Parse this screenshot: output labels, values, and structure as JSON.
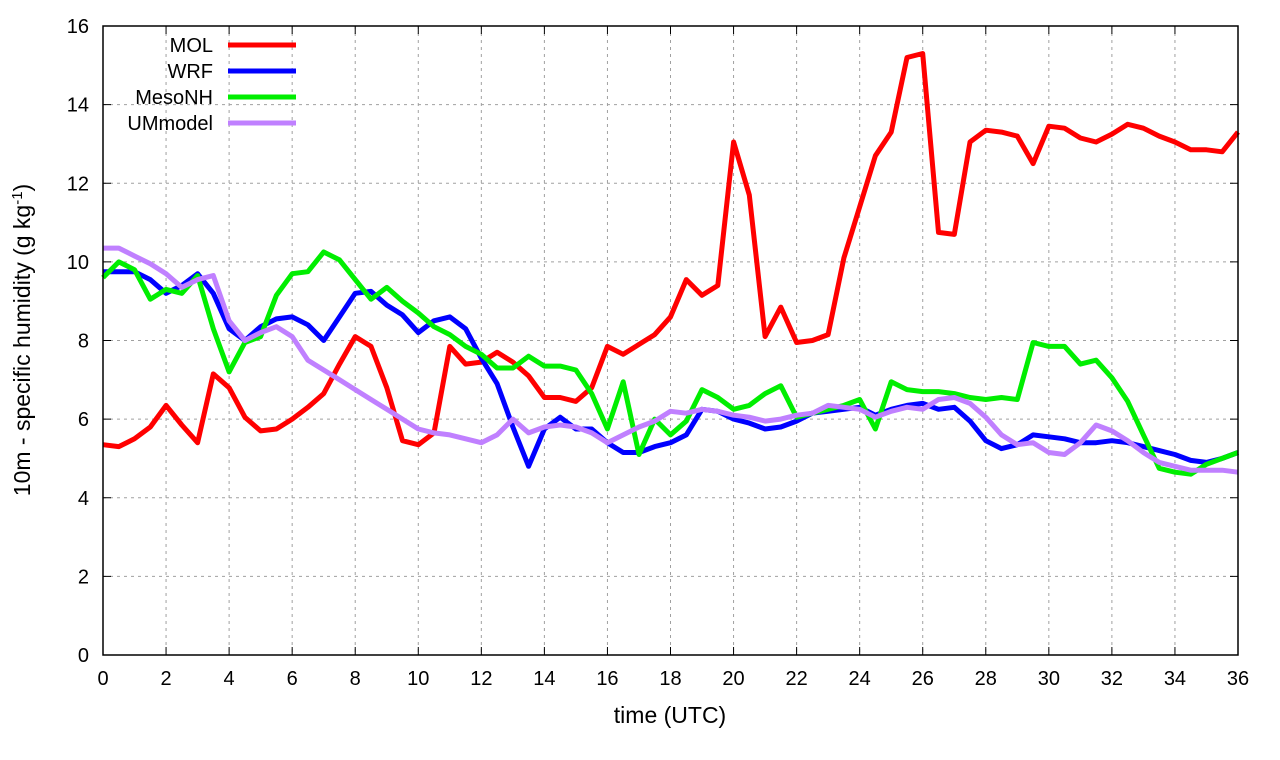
{
  "chart_data": {
    "type": "line",
    "xlabel": "time (UTC)",
    "ylabel": "10m - specific humidity (g kg",
    "ylabel_sup": "-1",
    "ylabel_close": ")",
    "xlim": [
      0,
      36
    ],
    "ylim": [
      0,
      16
    ],
    "xticks": [
      0,
      2,
      4,
      6,
      8,
      10,
      12,
      14,
      16,
      18,
      20,
      22,
      24,
      26,
      28,
      30,
      32,
      34,
      36
    ],
    "yticks": [
      0,
      2,
      4,
      6,
      8,
      10,
      12,
      14,
      16
    ],
    "grid": true,
    "legend_position": "top-left",
    "x_step": 0.5,
    "series": [
      {
        "name": "MOL",
        "color": "#ff0000",
        "values": [
          5.35,
          5.3,
          5.5,
          5.8,
          6.35,
          5.85,
          5.4,
          7.15,
          6.8,
          6.05,
          5.7,
          5.75,
          6.0,
          6.3,
          6.65,
          7.4,
          8.1,
          7.85,
          6.8,
          5.45,
          5.35,
          5.65,
          7.85,
          7.4,
          7.45,
          7.7,
          7.45,
          7.1,
          6.55,
          6.55,
          6.45,
          6.8,
          7.85,
          7.65,
          7.9,
          8.15,
          8.6,
          9.55,
          9.15,
          9.4,
          13.05,
          11.7,
          8.1,
          8.85,
          7.95,
          8.0,
          8.15,
          10.1,
          11.4,
          12.7,
          13.3,
          15.2,
          15.3,
          10.75,
          10.7,
          13.05,
          13.35,
          13.3,
          13.2,
          12.5,
          13.45,
          13.4,
          13.15,
          13.05,
          13.25,
          13.5,
          13.4,
          13.2,
          13.05,
          12.85,
          12.85,
          12.8,
          13.3
        ]
      },
      {
        "name": "WRF",
        "color": "#0000ff",
        "values": [
          9.75,
          9.75,
          9.75,
          9.55,
          9.2,
          9.4,
          9.7,
          9.2,
          8.3,
          8.0,
          8.35,
          8.55,
          8.6,
          8.4,
          8.0,
          8.6,
          9.2,
          9.25,
          8.9,
          8.65,
          8.2,
          8.5,
          8.6,
          8.3,
          7.55,
          6.9,
          5.8,
          4.8,
          5.75,
          6.05,
          5.75,
          5.75,
          5.4,
          5.15,
          5.15,
          5.3,
          5.4,
          5.6,
          6.25,
          6.2,
          6.0,
          5.9,
          5.75,
          5.8,
          5.95,
          6.15,
          6.2,
          6.25,
          6.3,
          6.1,
          6.25,
          6.35,
          6.4,
          6.25,
          6.3,
          5.95,
          5.45,
          5.25,
          5.35,
          5.6,
          5.55,
          5.5,
          5.4,
          5.4,
          5.45,
          5.4,
          5.3,
          5.2,
          5.1,
          4.95,
          4.9,
          5.0,
          5.15
        ]
      },
      {
        "name": "MesoNH",
        "color": "#00ee00",
        "values": [
          9.6,
          10.0,
          9.8,
          9.05,
          9.3,
          9.2,
          9.65,
          8.3,
          7.2,
          7.95,
          8.1,
          9.15,
          9.7,
          9.75,
          10.25,
          10.05,
          9.55,
          9.05,
          9.35,
          9.0,
          8.7,
          8.35,
          8.15,
          7.85,
          7.65,
          7.3,
          7.3,
          7.6,
          7.35,
          7.35,
          7.25,
          6.65,
          5.75,
          6.95,
          5.1,
          6.0,
          5.6,
          5.95,
          6.75,
          6.55,
          6.25,
          6.35,
          6.65,
          6.85,
          6.05,
          6.15,
          6.25,
          6.35,
          6.5,
          5.75,
          6.95,
          6.75,
          6.7,
          6.7,
          6.65,
          6.55,
          6.5,
          6.55,
          6.5,
          7.95,
          7.85,
          7.85,
          7.4,
          7.5,
          7.05,
          6.45,
          5.6,
          4.75,
          4.65,
          4.6,
          4.85,
          5.0,
          5.15
        ]
      },
      {
        "name": "UMmodel",
        "color": "#c080ff",
        "values": [
          10.35,
          10.35,
          10.15,
          9.95,
          9.7,
          9.35,
          9.55,
          9.65,
          8.5,
          8.0,
          8.2,
          8.35,
          8.1,
          7.5,
          7.25,
          7.0,
          6.75,
          6.5,
          6.25,
          6.0,
          5.75,
          5.65,
          5.6,
          5.5,
          5.4,
          5.6,
          6.0,
          5.65,
          5.8,
          5.85,
          5.8,
          5.65,
          5.4,
          5.6,
          5.8,
          5.95,
          6.2,
          6.15,
          6.25,
          6.2,
          6.1,
          6.05,
          5.95,
          6.0,
          6.1,
          6.15,
          6.35,
          6.3,
          6.25,
          6.05,
          6.2,
          6.3,
          6.25,
          6.5,
          6.55,
          6.4,
          6.05,
          5.6,
          5.35,
          5.4,
          5.15,
          5.1,
          5.4,
          5.85,
          5.7,
          5.45,
          5.15,
          4.9,
          4.8,
          4.7,
          4.7,
          4.7,
          4.65
        ]
      }
    ]
  }
}
